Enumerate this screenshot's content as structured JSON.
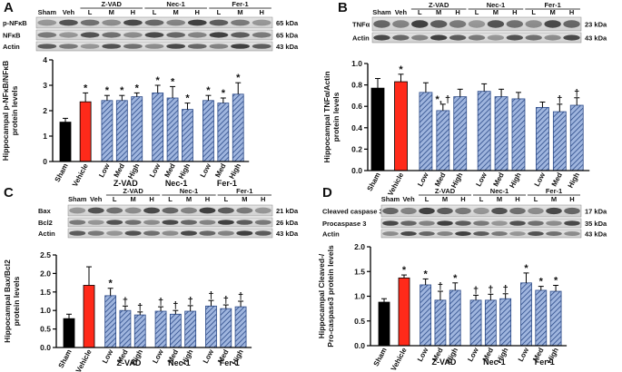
{
  "chart_data": [
    {
      "type": "bar",
      "panel": "A",
      "ylabel": [
        "Hippocampal p-NFκB/NFκB",
        "protein levels"
      ],
      "categories": [
        "Sham",
        "Vehicle",
        "Low",
        "Med",
        "High",
        "Low",
        "Med",
        "High",
        "Low",
        "Med",
        "High"
      ],
      "groups": [
        "Z-VAD",
        "Nec-1",
        "Fer-1"
      ],
      "values": [
        1.55,
        2.35,
        2.4,
        2.4,
        2.55,
        2.7,
        2.5,
        2.05,
        2.4,
        2.3,
        2.65
      ],
      "errors": [
        0.15,
        0.35,
        0.2,
        0.2,
        0.15,
        0.3,
        0.45,
        0.25,
        0.2,
        0.2,
        0.45
      ],
      "markers": [
        null,
        "*",
        "*",
        "*",
        "*",
        "*",
        "*",
        "*",
        "*",
        "*",
        "*"
      ],
      "colors": [
        "#000000",
        "#ff2a1a",
        "#9fb5de",
        "#9fb5de",
        "#9fb5de",
        "#9fb5de",
        "#9fb5de",
        "#9fb5de",
        "#9fb5de",
        "#9fb5de",
        "#9fb5de"
      ],
      "hatched": [
        false,
        false,
        true,
        true,
        true,
        true,
        true,
        true,
        true,
        true,
        true
      ],
      "ylim": [
        0,
        4
      ],
      "yticks": [
        0,
        1,
        2,
        3,
        4
      ],
      "blot_header": {
        "sham": "Sham",
        "veh": "Veh",
        "doses": [
          "L",
          "M",
          "H"
        ]
      },
      "blots": [
        {
          "name": "p-NFκB",
          "size": "65 kDa"
        },
        {
          "name": "NFκB",
          "size": "65 kDa"
        },
        {
          "name": "Actin",
          "size": "43 kDa"
        }
      ]
    },
    {
      "type": "bar",
      "panel": "B",
      "ylabel": [
        "Hippocampal TNFα/Actin",
        "protein levels"
      ],
      "categories": [
        "Sham",
        "Vehicle",
        "Low",
        "Med",
        "High",
        "Low",
        "Med",
        "High",
        "Low",
        "Med",
        "High"
      ],
      "groups": [
        "Z-VAD",
        "Nec-1",
        "Fer-1"
      ],
      "values": [
        0.77,
        0.83,
        0.73,
        0.56,
        0.69,
        0.74,
        0.69,
        0.67,
        0.59,
        0.55,
        0.61
      ],
      "errors": [
        0.09,
        0.07,
        0.09,
        0.06,
        0.07,
        0.07,
        0.07,
        0.06,
        0.05,
        0.07,
        0.07
      ],
      "markers": [
        null,
        "*",
        null,
        "*, †",
        null,
        null,
        null,
        null,
        null,
        "†",
        "†"
      ],
      "colors": [
        "#000000",
        "#ff2a1a",
        "#9fb5de",
        "#9fb5de",
        "#9fb5de",
        "#9fb5de",
        "#9fb5de",
        "#9fb5de",
        "#9fb5de",
        "#9fb5de",
        "#9fb5de"
      ],
      "hatched": [
        false,
        false,
        true,
        true,
        true,
        true,
        true,
        true,
        true,
        true,
        true
      ],
      "ylim": [
        0,
        1.0
      ],
      "yticks": [
        {
          "value": 0,
          "label": "0.0"
        },
        0.2,
        0.4,
        0.6,
        0.8,
        {
          "value": 1.0,
          "label": "1.0"
        }
      ],
      "blot_header": {
        "sham": "Sham",
        "veh": "Veh",
        "doses": [
          "L",
          "M",
          "H"
        ]
      },
      "blots": [
        {
          "name": "TNFα",
          "size": "23 kDa"
        },
        {
          "name": "Actin",
          "size": "43 kDa"
        }
      ]
    },
    {
      "type": "bar",
      "panel": "C",
      "ylabel": [
        "Hippocampal Bax/Bcl2",
        "protein levels"
      ],
      "categories": [
        "Sham",
        "Vehicle",
        "Low",
        "Med",
        "High",
        "Low",
        "Med",
        "High",
        "Low",
        "Med",
        "High"
      ],
      "groups": [
        "Z-VAD",
        "Nec-1",
        "Fer-1"
      ],
      "values": [
        0.78,
        1.68,
        1.4,
        1.0,
        0.88,
        0.98,
        0.9,
        0.98,
        1.12,
        1.05,
        1.1
      ],
      "errors": [
        0.12,
        0.5,
        0.2,
        0.12,
        0.08,
        0.12,
        0.1,
        0.15,
        0.15,
        0.1,
        0.15
      ],
      "markers": [
        null,
        null,
        "*",
        "†",
        "†",
        "†",
        "†",
        "†",
        "†",
        "†",
        "†"
      ],
      "colors": [
        "#000000",
        "#ff2a1a",
        "#9fb5de",
        "#9fb5de",
        "#9fb5de",
        "#9fb5de",
        "#9fb5de",
        "#9fb5de",
        "#9fb5de",
        "#9fb5de",
        "#9fb5de"
      ],
      "hatched": [
        false,
        false,
        true,
        true,
        true,
        true,
        true,
        true,
        true,
        true,
        true
      ],
      "ylim": [
        0,
        2.5
      ],
      "yticks": [
        {
          "value": 0,
          "label": "0.0"
        },
        0.5,
        {
          "value": 1.0,
          "label": "1.0"
        },
        1.5,
        {
          "value": 2.0,
          "label": "2.0"
        },
        2.5
      ],
      "blot_header": {
        "sham": "Sham",
        "veh": "Veh",
        "doses": [
          "L",
          "M",
          "H"
        ]
      },
      "blots": [
        {
          "name": "Bax",
          "size": "21 kDa"
        },
        {
          "name": "Bcl2",
          "size": "26 kDa"
        },
        {
          "name": "Actin",
          "size": "43 kDa"
        }
      ]
    },
    {
      "type": "bar",
      "panel": "D",
      "ylabel": [
        "Hippocampal Cleaved-/",
        "Pro-caspase3 protein levels"
      ],
      "categories": [
        "Sham",
        "Vehicle",
        "Low",
        "Med",
        "High",
        "Low",
        "Med",
        "High",
        "Low",
        "Med",
        "High"
      ],
      "groups": [
        "Z-VAD",
        "Nec-1",
        "Fer-1"
      ],
      "values": [
        0.88,
        1.37,
        1.23,
        0.92,
        1.12,
        0.92,
        0.92,
        0.95,
        1.27,
        1.12,
        1.1
      ],
      "errors": [
        0.07,
        0.06,
        0.12,
        0.18,
        0.15,
        0.1,
        0.12,
        0.1,
        0.2,
        0.08,
        0.12
      ],
      "markers": [
        null,
        "*",
        "*",
        "†",
        "*",
        "†",
        "†",
        "†",
        "*",
        "*",
        "*"
      ],
      "colors": [
        "#000000",
        "#ff2a1a",
        "#9fb5de",
        "#9fb5de",
        "#9fb5de",
        "#9fb5de",
        "#9fb5de",
        "#9fb5de",
        "#9fb5de",
        "#9fb5de",
        "#9fb5de"
      ],
      "hatched": [
        false,
        false,
        true,
        true,
        true,
        true,
        true,
        true,
        true,
        true,
        true
      ],
      "ylim": [
        0,
        2.0
      ],
      "yticks": [
        {
          "value": 0,
          "label": "0.0"
        },
        0.5,
        {
          "value": 1.0,
          "label": "1.0"
        },
        1.5,
        {
          "value": 2.0,
          "label": "2.0"
        }
      ],
      "blot_header": {
        "sham": "Sham",
        "veh": "Veh",
        "doses": [
          "L",
          "M",
          "H"
        ]
      },
      "blots": [
        {
          "name": "Cleaved caspase 3",
          "size": "17 kDa"
        },
        {
          "name": "Procaspase 3",
          "size": "35 kDa"
        },
        {
          "name": "Actin",
          "size": "43 kDa"
        }
      ]
    }
  ]
}
